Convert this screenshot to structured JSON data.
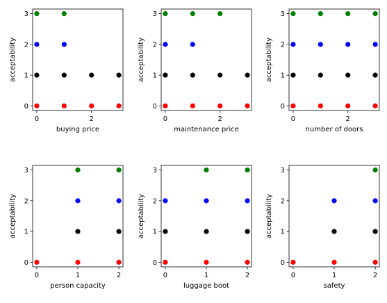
{
  "chart_data": [
    {
      "type": "scatter",
      "xlabel": "buying price",
      "ylabel": "acceptability",
      "xlim": [
        -0.15,
        3.15
      ],
      "ylim": [
        -0.15,
        3.15
      ],
      "xticks": [
        0,
        2
      ],
      "yticks": [
        0,
        1,
        2,
        3
      ],
      "points": [
        {
          "x": 0,
          "y": 0,
          "color": "#ff0000"
        },
        {
          "x": 1,
          "y": 0,
          "color": "#ff0000"
        },
        {
          "x": 2,
          "y": 0,
          "color": "#ff0000"
        },
        {
          "x": 3,
          "y": 0,
          "color": "#ff0000"
        },
        {
          "x": 0,
          "y": 1,
          "color": "#000000"
        },
        {
          "x": 1,
          "y": 1,
          "color": "#000000"
        },
        {
          "x": 2,
          "y": 1,
          "color": "#000000"
        },
        {
          "x": 3,
          "y": 1,
          "color": "#000000"
        },
        {
          "x": 0,
          "y": 2,
          "color": "#0000ff"
        },
        {
          "x": 1,
          "y": 2,
          "color": "#0000ff"
        },
        {
          "x": 0,
          "y": 3,
          "color": "#008000"
        },
        {
          "x": 1,
          "y": 3,
          "color": "#008000"
        }
      ]
    },
    {
      "type": "scatter",
      "xlabel": "maintenance price",
      "ylabel": "acceptability",
      "xlim": [
        -0.15,
        3.15
      ],
      "ylim": [
        -0.15,
        3.15
      ],
      "xticks": [
        0,
        2
      ],
      "yticks": [
        0,
        1,
        2,
        3
      ],
      "points": [
        {
          "x": 0,
          "y": 0,
          "color": "#ff0000"
        },
        {
          "x": 1,
          "y": 0,
          "color": "#ff0000"
        },
        {
          "x": 2,
          "y": 0,
          "color": "#ff0000"
        },
        {
          "x": 3,
          "y": 0,
          "color": "#ff0000"
        },
        {
          "x": 0,
          "y": 1,
          "color": "#000000"
        },
        {
          "x": 1,
          "y": 1,
          "color": "#000000"
        },
        {
          "x": 2,
          "y": 1,
          "color": "#000000"
        },
        {
          "x": 3,
          "y": 1,
          "color": "#000000"
        },
        {
          "x": 0,
          "y": 2,
          "color": "#0000ff"
        },
        {
          "x": 1,
          "y": 2,
          "color": "#0000ff"
        },
        {
          "x": 0,
          "y": 3,
          "color": "#008000"
        },
        {
          "x": 1,
          "y": 3,
          "color": "#008000"
        },
        {
          "x": 2,
          "y": 3,
          "color": "#008000"
        }
      ]
    },
    {
      "type": "scatter",
      "xlabel": "number of doors",
      "ylabel": "acceptability",
      "xlim": [
        -0.15,
        3.15
      ],
      "ylim": [
        -0.15,
        3.15
      ],
      "xticks": [
        0,
        2
      ],
      "yticks": [
        0,
        1,
        2,
        3
      ],
      "points": [
        {
          "x": 0,
          "y": 0,
          "color": "#ff0000"
        },
        {
          "x": 1,
          "y": 0,
          "color": "#ff0000"
        },
        {
          "x": 2,
          "y": 0,
          "color": "#ff0000"
        },
        {
          "x": 3,
          "y": 0,
          "color": "#ff0000"
        },
        {
          "x": 0,
          "y": 1,
          "color": "#000000"
        },
        {
          "x": 1,
          "y": 1,
          "color": "#000000"
        },
        {
          "x": 2,
          "y": 1,
          "color": "#000000"
        },
        {
          "x": 3,
          "y": 1,
          "color": "#000000"
        },
        {
          "x": 0,
          "y": 2,
          "color": "#0000ff"
        },
        {
          "x": 1,
          "y": 2,
          "color": "#0000ff"
        },
        {
          "x": 2,
          "y": 2,
          "color": "#0000ff"
        },
        {
          "x": 3,
          "y": 2,
          "color": "#0000ff"
        },
        {
          "x": 0,
          "y": 3,
          "color": "#008000"
        },
        {
          "x": 1,
          "y": 3,
          "color": "#008000"
        },
        {
          "x": 2,
          "y": 3,
          "color": "#008000"
        },
        {
          "x": 3,
          "y": 3,
          "color": "#008000"
        }
      ]
    },
    {
      "type": "scatter",
      "xlabel": "person capacity",
      "ylabel": "acceptability",
      "xlim": [
        -0.1,
        2.1
      ],
      "ylim": [
        -0.15,
        3.15
      ],
      "xticks": [
        0,
        1,
        2
      ],
      "yticks": [
        0,
        1,
        2,
        3
      ],
      "points": [
        {
          "x": 0,
          "y": 0,
          "color": "#ff0000"
        },
        {
          "x": 1,
          "y": 0,
          "color": "#ff0000"
        },
        {
          "x": 2,
          "y": 0,
          "color": "#ff0000"
        },
        {
          "x": 1,
          "y": 1,
          "color": "#000000"
        },
        {
          "x": 2,
          "y": 1,
          "color": "#000000"
        },
        {
          "x": 1,
          "y": 2,
          "color": "#0000ff"
        },
        {
          "x": 2,
          "y": 2,
          "color": "#0000ff"
        },
        {
          "x": 1,
          "y": 3,
          "color": "#008000"
        },
        {
          "x": 2,
          "y": 3,
          "color": "#008000"
        }
      ]
    },
    {
      "type": "scatter",
      "xlabel": "luggage boot",
      "ylabel": "acceptability",
      "xlim": [
        -0.1,
        2.1
      ],
      "ylim": [
        -0.15,
        3.15
      ],
      "xticks": [
        0,
        1,
        2
      ],
      "yticks": [
        0,
        1,
        2,
        3
      ],
      "points": [
        {
          "x": 0,
          "y": 0,
          "color": "#ff0000"
        },
        {
          "x": 1,
          "y": 0,
          "color": "#ff0000"
        },
        {
          "x": 2,
          "y": 0,
          "color": "#ff0000"
        },
        {
          "x": 0,
          "y": 1,
          "color": "#000000"
        },
        {
          "x": 1,
          "y": 1,
          "color": "#000000"
        },
        {
          "x": 2,
          "y": 1,
          "color": "#000000"
        },
        {
          "x": 0,
          "y": 2,
          "color": "#0000ff"
        },
        {
          "x": 1,
          "y": 2,
          "color": "#0000ff"
        },
        {
          "x": 2,
          "y": 2,
          "color": "#0000ff"
        },
        {
          "x": 1,
          "y": 3,
          "color": "#008000"
        },
        {
          "x": 2,
          "y": 3,
          "color": "#008000"
        }
      ]
    },
    {
      "type": "scatter",
      "xlabel": "safety",
      "ylabel": "acceptability",
      "xlim": [
        -0.1,
        2.1
      ],
      "ylim": [
        -0.15,
        3.15
      ],
      "xticks": [
        0,
        1,
        2
      ],
      "yticks": [
        0,
        1,
        2,
        3
      ],
      "points": [
        {
          "x": 0,
          "y": 0,
          "color": "#ff0000"
        },
        {
          "x": 1,
          "y": 0,
          "color": "#ff0000"
        },
        {
          "x": 2,
          "y": 0,
          "color": "#ff0000"
        },
        {
          "x": 1,
          "y": 1,
          "color": "#000000"
        },
        {
          "x": 2,
          "y": 1,
          "color": "#000000"
        },
        {
          "x": 1,
          "y": 2,
          "color": "#0000ff"
        },
        {
          "x": 2,
          "y": 2,
          "color": "#0000ff"
        },
        {
          "x": 2,
          "y": 3,
          "color": "#008000"
        }
      ]
    }
  ]
}
